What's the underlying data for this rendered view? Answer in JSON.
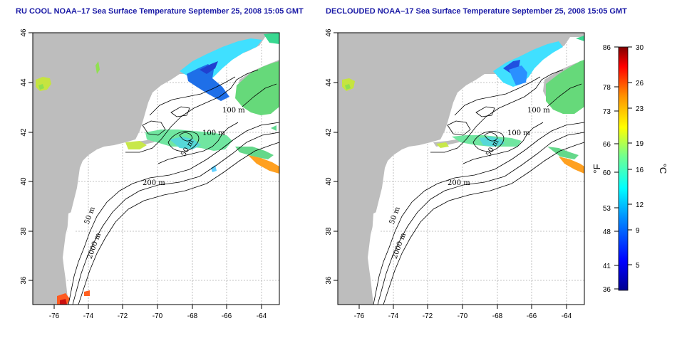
{
  "titles": {
    "left": "RU COOL NOAA–17 Sea Surface Temperature September 25, 2008 15:05 GMT",
    "right": "DECLOUDED NOAA–17 Sea Surface Temperature September 25, 2008 15:05 GMT"
  },
  "axes": {
    "x_ticks": [
      "-76",
      "-74",
      "-72",
      "-70",
      "-68",
      "-66",
      "-64"
    ],
    "y_ticks": [
      "46",
      "44",
      "42",
      "40",
      "38",
      "36"
    ]
  },
  "contour_labels": {
    "left": [
      "100 m",
      "100 m",
      "50 m",
      "200 m",
      "50 m",
      "2000 m"
    ],
    "right": [
      "100 m",
      "100 m",
      "50 m",
      "200 m",
      "50 m",
      "2000 m"
    ]
  },
  "colorbar": {
    "fahrenheit_ticks": [
      "86",
      "78",
      "73",
      "66",
      "60",
      "53",
      "48",
      "41",
      "36"
    ],
    "celsius_ticks": [
      "30",
      "26",
      "23",
      "19",
      "16",
      "12",
      "9",
      "5"
    ],
    "fahrenheit_unit": "°F",
    "celsius_unit": "°C",
    "colors": [
      "#00008f",
      "#0000ff",
      "#0080ff",
      "#00ffff",
      "#80ff80",
      "#ffff00",
      "#ff8000",
      "#ff0000",
      "#800000"
    ]
  },
  "colors": {
    "land": "#bdbdbd",
    "grid": "#b0b0b0"
  }
}
